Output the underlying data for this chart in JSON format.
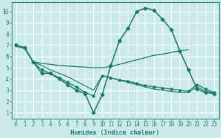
{
  "background_color": "#cce9e9",
  "grid_color": "#ffffff",
  "line_color": "#1a7a6e",
  "xlabel": "Humidex (Indice chaleur)",
  "xlim": [
    -0.5,
    23.5
  ],
  "ylim": [
    0.5,
    10.8
  ],
  "xtick_vals": [
    0,
    1,
    2,
    3,
    4,
    5,
    6,
    7,
    8,
    9,
    10,
    11,
    12,
    13,
    14,
    15,
    16,
    17,
    18,
    19,
    20,
    21,
    22,
    23
  ],
  "ytick_vals": [
    1,
    2,
    3,
    4,
    5,
    6,
    7,
    8,
    9,
    10
  ],
  "curve1": {
    "x": [
      0,
      1,
      2,
      3,
      4,
      5,
      6,
      7,
      8,
      9,
      10,
      11,
      12,
      13,
      14,
      15,
      16,
      17,
      18,
      19,
      20,
      21,
      22,
      23
    ],
    "y": [
      7.0,
      6.8,
      5.5,
      4.5,
      4.5,
      4.0,
      3.5,
      3.0,
      2.7,
      1.0,
      2.6,
      5.2,
      7.4,
      8.5,
      10.0,
      10.3,
      10.1,
      9.3,
      8.4,
      6.5,
      4.8,
      3.1,
      2.8,
      2.7
    ],
    "marker": "D",
    "markersize": 2.5,
    "linewidth": 1.2
  },
  "curve2": {
    "x": [
      0,
      1,
      2,
      3,
      4,
      5,
      6,
      7,
      8,
      9,
      10,
      11,
      12,
      13,
      14,
      15,
      16,
      17,
      18,
      19,
      20
    ],
    "y": [
      7.0,
      6.8,
      5.5,
      5.4,
      5.3,
      5.2,
      5.15,
      5.1,
      5.05,
      5.0,
      5.0,
      5.1,
      5.3,
      5.5,
      5.7,
      5.9,
      6.1,
      6.2,
      6.35,
      6.5,
      6.6
    ],
    "marker": null,
    "linewidth": 1.0
  },
  "curve3": {
    "x": [
      2,
      3,
      4,
      5,
      6,
      7,
      8,
      9,
      10,
      11,
      12,
      13,
      14,
      15,
      16,
      17,
      18,
      19,
      20,
      21,
      22,
      23
    ],
    "y": [
      5.5,
      4.8,
      4.5,
      4.1,
      3.7,
      3.3,
      2.8,
      2.5,
      4.3,
      4.1,
      3.9,
      3.8,
      3.6,
      3.4,
      3.3,
      3.2,
      3.1,
      3.0,
      2.9,
      3.5,
      3.1,
      2.8
    ],
    "marker": "D",
    "markersize": 2.0,
    "linewidth": 1.0
  },
  "curve4": {
    "x": [
      0,
      1,
      2,
      3,
      4,
      5,
      6,
      7,
      8,
      9,
      10,
      11,
      12,
      13,
      14,
      15,
      16,
      17,
      18,
      19,
      20,
      21,
      22,
      23
    ],
    "y": [
      6.9,
      6.7,
      5.5,
      5.2,
      4.8,
      4.5,
      4.2,
      3.8,
      3.4,
      3.0,
      4.3,
      4.1,
      3.9,
      3.7,
      3.5,
      3.3,
      3.1,
      3.0,
      2.9,
      2.8,
      2.8,
      3.3,
      2.9,
      2.8
    ],
    "marker": null,
    "linewidth": 0.9
  }
}
